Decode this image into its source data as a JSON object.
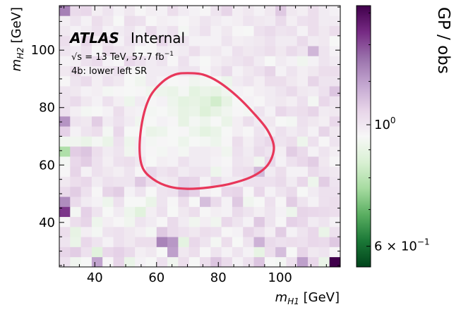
{
  "chart_data": {
    "type": "heatmap",
    "title": "",
    "xlabel": "m_H1 [GeV]",
    "xlabel_main": "m",
    "xlabel_sub": "H1",
    "xlabel_unit": " [GeV]",
    "ylabel": "m_H2 [GeV]",
    "ylabel_main": "m",
    "ylabel_sub": "H2",
    "ylabel_unit": " [GeV]",
    "xlim": [
      28.5,
      119.5
    ],
    "ylim": [
      24.5,
      115.5
    ],
    "xticks": [
      40,
      60,
      80,
      100
    ],
    "yticks": [
      40,
      60,
      80,
      100
    ],
    "bins": {
      "x_start": 28.5,
      "y_start": 24.5,
      "width": 3.5,
      "nx": 26,
      "ny": 26
    },
    "colorbar": {
      "label": "GP / obs",
      "scale": "log",
      "vmin": 0.55,
      "vmax": 1.65,
      "colormap": "PRGn",
      "ticks": [
        {
          "value": 1.0,
          "base": "10",
          "exp": "0"
        },
        {
          "value": 0.6,
          "base": "6 × 10",
          "exp": "−1"
        }
      ]
    },
    "annotations": {
      "atlas": "ATLAS",
      "atlas_status": "Internal",
      "energy_prefix": "√s = 13 TeV, 57.7 fb",
      "energy_exp": "−1",
      "region": "4b: lower left SR"
    },
    "signal_region_contour": {
      "color": "#e8375a",
      "points": [
        [
          70.0,
          92.0
        ],
        [
          66.0,
          91.5
        ],
        [
          62.0,
          89.0
        ],
        [
          58.0,
          84.0
        ],
        [
          55.5,
          76.0
        ],
        [
          54.5,
          66.0
        ],
        [
          55.5,
          59.0
        ],
        [
          59.0,
          55.0
        ],
        [
          64.0,
          52.5
        ],
        [
          70.0,
          51.7
        ],
        [
          77.0,
          52.2
        ],
        [
          84.0,
          53.5
        ],
        [
          91.0,
          56.0
        ],
        [
          96.0,
          60.0
        ],
        [
          98.0,
          66.0
        ],
        [
          96.0,
          72.0
        ],
        [
          91.5,
          78.0
        ],
        [
          86.0,
          84.0
        ],
        [
          80.0,
          89.0
        ],
        [
          75.0,
          91.5
        ]
      ]
    },
    "ratios": [
      [
        1.02,
        0.93,
        0.95,
        1.19,
        0.96,
        1.06,
        0.91,
        0.97,
        0.95,
        1.02,
        0.93,
        1.03,
        0.95,
        1.03,
        1.1,
        1.04,
        0.97,
        1.02,
        1.1,
        0.95,
        0.94,
        1.02,
        1.2,
        1.05,
        0.91,
        1.65
      ],
      [
        1.06,
        1.08,
        1.02,
        0.88,
        1.05,
        1.07,
        1.04,
        0.98,
        1.0,
        0.95,
        1.2,
        1.0,
        1.03,
        0.96,
        1.01,
        0.97,
        1.01,
        0.97,
        0.9,
        1.03,
        1.12,
        0.95,
        1.06,
        1.0,
        1.01,
        0.96
      ],
      [
        1.01,
        0.91,
        1.05,
        1.01,
        0.97,
        1.02,
        1.0,
        1.03,
        1.03,
        1.27,
        1.22,
        0.89,
        1.05,
        1.01,
        0.94,
        1.03,
        0.95,
        1.01,
        1.15,
        1.04,
        1.02,
        1.03,
        1.02,
        1.05,
        1.04,
        1.09
      ],
      [
        1.03,
        0.9,
        0.98,
        0.94,
        1.01,
        1.02,
        1.0,
        0.98,
        0.94,
        1.09,
        1.04,
        1.02,
        1.0,
        1.03,
        1.02,
        0.96,
        0.97,
        1.06,
        1.02,
        0.98,
        1.08,
        0.97,
        1.01,
        1.05,
        0.91,
        1.02
      ],
      [
        0.96,
        1.03,
        1.06,
        0.92,
        0.98,
        0.96,
        0.93,
        1.01,
        0.99,
        0.96,
        1.04,
        0.99,
        0.93,
        0.98,
        0.93,
        1.05,
        1.01,
        0.97,
        1.09,
        1.01,
        0.96,
        1.07,
        1.05,
        0.99,
        1.01,
        0.97
      ],
      [
        1.45,
        0.94,
        1.07,
        1.01,
        0.95,
        0.99,
        0.92,
        0.88,
        0.98,
        1.02,
        0.95,
        1.0,
        1.03,
        0.96,
        0.98,
        0.97,
        1.04,
        1.01,
        0.98,
        1.01,
        0.97,
        0.92,
        1.06,
        1.05,
        1.04,
        1.03
      ],
      [
        1.25,
        1.04,
        0.99,
        0.97,
        0.92,
        1.02,
        0.95,
        0.95,
        0.91,
        1.01,
        0.96,
        1.03,
        0.95,
        1.12,
        1.04,
        0.97,
        1.09,
        0.93,
        0.95,
        1.02,
        0.96,
        1.08,
        1.01,
        0.97,
        1.02,
        1.03
      ],
      [
        1.04,
        1.08,
        1.02,
        0.96,
        1.06,
        1.08,
        0.97,
        1.01,
        0.95,
        1.01,
        1.02,
        1.1,
        1.07,
        0.98,
        0.96,
        1.05,
        1.06,
        0.96,
        1.05,
        0.97,
        1.01,
        1.04,
        0.95,
        0.99,
        1.02,
        1.02
      ],
      [
        1.0,
        1.03,
        1.05,
        0.99,
        1.02,
        1.01,
        1.01,
        1.09,
        1.03,
        0.99,
        1.0,
        1.07,
        1.06,
        0.97,
        1.04,
        0.99,
        0.99,
        1.02,
        1.02,
        1.02,
        1.04,
        0.99,
        1.05,
        0.92,
        1.08,
        1.01
      ],
      [
        0.96,
        1.06,
        0.97,
        1.02,
        1.0,
        0.98,
        1.01,
        0.96,
        1.05,
        1.01,
        1.03,
        0.99,
        1.01,
        1.01,
        0.92,
        0.97,
        1.02,
        1.03,
        1.13,
        0.99,
        1.03,
        0.97,
        0.97,
        1.04,
        1.01,
        1.0
      ],
      [
        0.94,
        1.05,
        1.08,
        1.02,
        0.98,
        1.02,
        1.03,
        1.0,
        0.95,
        0.98,
        0.97,
        1.02,
        0.99,
        0.99,
        0.97,
        0.96,
        1.01,
        1.0,
        0.93,
        1.05,
        0.97,
        1.02,
        1.05,
        1.08,
        1.0,
        0.96
      ],
      [
        0.78,
        1.08,
        1.1,
        1.03,
        0.99,
        1.01,
        0.93,
        0.98,
        0.96,
        0.94,
        0.97,
        0.94,
        0.99,
        0.99,
        0.98,
        0.93,
        1.02,
        0.99,
        1.04,
        1.01,
        0.98,
        1.08,
        1.04,
        0.97,
        1.01,
        0.98
      ],
      [
        0.93,
        0.93,
        0.91,
        0.94,
        0.91,
        1.02,
        0.92,
        0.98,
        0.94,
        0.96,
        0.95,
        0.92,
        0.95,
        0.94,
        0.92,
        0.96,
        1.03,
        0.98,
        1.02,
        1.05,
        1.01,
        1.03,
        0.92,
        1.02,
        0.96,
        1.01
      ],
      [
        1.07,
        0.97,
        1.01,
        1.03,
        0.94,
        1.05,
        0.95,
        0.95,
        0.91,
        0.92,
        0.95,
        0.96,
        0.92,
        0.89,
        0.91,
        0.95,
        0.98,
        0.96,
        1.01,
        0.98,
        1.02,
        0.99,
        1.01,
        0.97,
        1.06,
        1.0
      ],
      [
        1.23,
        1.01,
        1.0,
        1.08,
        0.99,
        1.02,
        0.99,
        0.93,
        0.95,
        0.97,
        0.96,
        0.9,
        0.94,
        0.92,
        0.95,
        0.91,
        0.98,
        1.03,
        0.99,
        1.0,
        0.95,
        0.94,
        1.02,
        1.0,
        0.98,
        1.05
      ],
      [
        1.02,
        0.98,
        0.94,
        0.95,
        0.97,
        1.03,
        0.98,
        0.97,
        0.94,
        0.95,
        0.93,
        0.9,
        0.91,
        0.87,
        0.9,
        0.93,
        0.96,
        0.94,
        1.01,
        0.97,
        1.05,
        1.02,
        1.03,
        1.06,
        0.99,
        1.0
      ],
      [
        1.01,
        1.04,
        1.0,
        0.97,
        1.02,
        0.98,
        0.92,
        0.99,
        0.96,
        0.97,
        0.92,
        0.89,
        0.9,
        0.88,
        0.84,
        0.9,
        0.95,
        0.97,
        0.96,
        0.99,
        1.0,
        0.98,
        1.02,
        0.94,
        1.05,
        1.01
      ],
      [
        1.01,
        1.0,
        0.97,
        0.98,
        0.94,
        0.96,
        0.95,
        0.96,
        0.93,
        0.92,
        0.91,
        0.94,
        0.89,
        0.91,
        0.9,
        0.93,
        0.97,
        0.96,
        0.98,
        0.99,
        1.01,
        1.04,
        1.0,
        0.99,
        1.02,
        1.1
      ],
      [
        0.96,
        1.01,
        1.04,
        0.98,
        1.02,
        1.0,
        0.95,
        0.93,
        0.99,
        0.97,
        0.95,
        0.96,
        0.93,
        0.94,
        0.95,
        0.92,
        0.99,
        1.01,
        0.98,
        1.03,
        1.03,
        1.0,
        0.98,
        1.06,
        1.01,
        1.01
      ],
      [
        1.0,
        1.03,
        0.97,
        0.99,
        1.0,
        1.02,
        0.96,
        0.95,
        0.99,
        0.99,
        0.99,
        1.01,
        1.01,
        0.96,
        1.0,
        1.04,
        0.97,
        1.0,
        1.02,
        1.06,
        0.97,
        1.01,
        0.98,
        1.0,
        1.03,
        1.03
      ],
      [
        0.97,
        0.98,
        1.02,
        1.04,
        0.97,
        0.96,
        1.05,
        1.02,
        0.99,
        1.01,
        0.96,
        1.02,
        0.97,
        0.95,
        0.98,
        1.0,
        1.01,
        1.03,
        0.99,
        0.95,
        0.99,
        0.97,
        0.93,
        0.97,
        1.01,
        0.99
      ],
      [
        1.01,
        0.99,
        1.02,
        0.96,
        1.03,
        1.01,
        1.0,
        0.95,
        0.96,
        0.99,
        0.98,
        0.99,
        1.03,
        0.99,
        1.0,
        0.97,
        1.02,
        1.0,
        1.01,
        1.03,
        1.0,
        1.04,
        1.01,
        1.14,
        1.01,
        0.97
      ],
      [
        1.03,
        0.96,
        1.05,
        0.98,
        1.01,
        0.97,
        1.02,
        0.99,
        0.96,
        1.05,
        1.0,
        1.01,
        0.97,
        0.97,
        0.97,
        1.01,
        0.98,
        0.99,
        1.0,
        1.02,
        0.99,
        0.99,
        1.04,
        0.99,
        1.0,
        0.95
      ],
      [
        1.0,
        0.97,
        0.99,
        1.02,
        0.97,
        0.99,
        1.01,
        0.97,
        1.04,
        0.99,
        1.02,
        0.94,
        0.99,
        1.02,
        0.97,
        1.0,
        0.96,
        0.95,
        1.02,
        1.04,
        1.01,
        1.02,
        0.97,
        1.03,
        1.0,
        1.03
      ],
      [
        0.98,
        1.01,
        0.97,
        1.03,
        1.0,
        0.95,
        1.03,
        1.02,
        0.96,
        0.98,
        0.97,
        0.96,
        0.98,
        1.01,
        0.99,
        0.97,
        0.98,
        1.01,
        1.0,
        0.99,
        1.04,
        0.98,
        1.02,
        1.03,
        0.99,
        0.99
      ],
      [
        1.28,
        1.04,
        1.05,
        0.98,
        1.01,
        0.97,
        1.0,
        0.96,
        0.98,
        0.97,
        1.03,
        0.99,
        0.97,
        0.96,
        1.01,
        1.06,
        0.98,
        1.0,
        0.97,
        1.0,
        1.09,
        1.0,
        0.98,
        1.03,
        0.99,
        0.97
      ]
    ]
  }
}
